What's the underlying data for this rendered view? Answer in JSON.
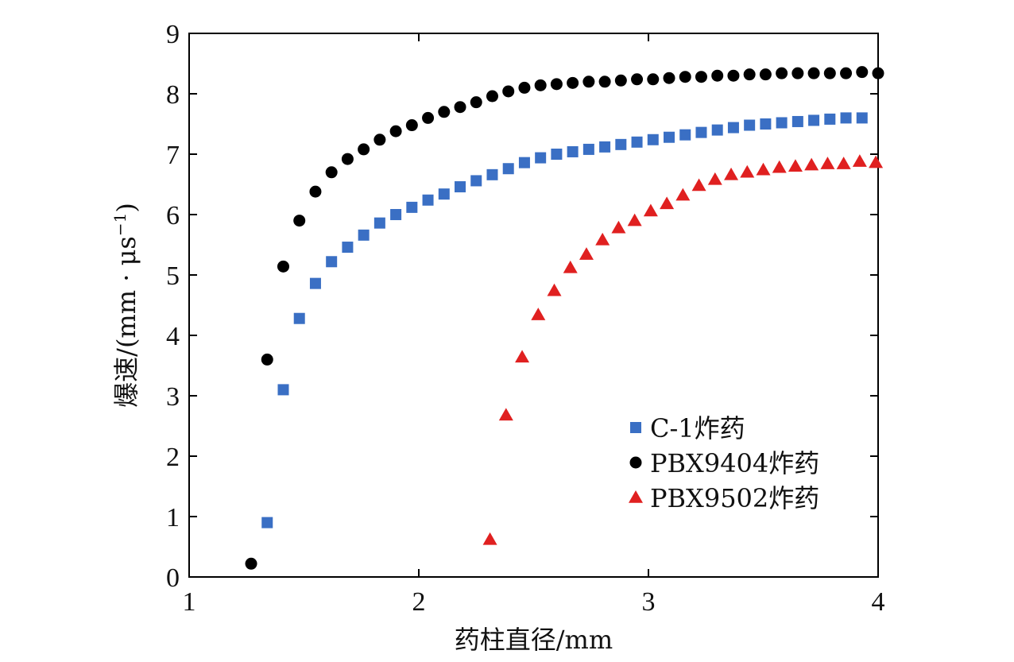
{
  "chart_data": {
    "type": "scatter",
    "xlabel": "药柱直径/mm",
    "ylabel": "爆速/(mm·μs⁻¹)",
    "ylabel_parts": {
      "main": "爆速/(mm · μs",
      "sup": "−1",
      "close": ")"
    },
    "xlim": [
      1,
      4
    ],
    "ylim": [
      0,
      9
    ],
    "x_ticks": [
      "1",
      "2",
      "3",
      "4"
    ],
    "y_ticks": [
      "0",
      "1",
      "2",
      "3",
      "4",
      "5",
      "6",
      "7",
      "8",
      "9"
    ],
    "grid": false,
    "legend_position": "bottom-right",
    "series": [
      {
        "name": "C-1炸药",
        "marker": "square",
        "color": "#3a6fc4",
        "x": [
          1.34,
          1.41,
          1.48,
          1.55,
          1.62,
          1.69,
          1.76,
          1.83,
          1.9,
          1.97,
          2.04,
          2.11,
          2.18,
          2.25,
          2.32,
          2.39,
          2.46,
          2.53,
          2.6,
          2.67,
          2.74,
          2.81,
          2.88,
          2.95,
          3.02,
          3.09,
          3.16,
          3.23,
          3.3,
          3.37,
          3.44,
          3.51,
          3.58,
          3.65,
          3.72,
          3.79,
          3.86,
          3.93
        ],
        "y": [
          0.9,
          3.1,
          4.28,
          4.86,
          5.22,
          5.46,
          5.66,
          5.86,
          6.0,
          6.12,
          6.24,
          6.34,
          6.46,
          6.56,
          6.66,
          6.76,
          6.86,
          6.94,
          7.0,
          7.04,
          7.08,
          7.12,
          7.16,
          7.2,
          7.24,
          7.28,
          7.32,
          7.36,
          7.4,
          7.44,
          7.48,
          7.5,
          7.52,
          7.54,
          7.56,
          7.58,
          7.6,
          7.6
        ]
      },
      {
        "name": "PBX9404炸药",
        "marker": "circle",
        "color": "#000000",
        "x": [
          1.27,
          1.34,
          1.41,
          1.48,
          1.55,
          1.62,
          1.69,
          1.76,
          1.83,
          1.9,
          1.97,
          2.04,
          2.11,
          2.18,
          2.25,
          2.32,
          2.39,
          2.46,
          2.53,
          2.6,
          2.67,
          2.74,
          2.81,
          2.88,
          2.95,
          3.02,
          3.09,
          3.16,
          3.23,
          3.3,
          3.37,
          3.44,
          3.51,
          3.58,
          3.65,
          3.72,
          3.79,
          3.86,
          3.93,
          4.0
        ],
        "y": [
          0.22,
          3.6,
          5.14,
          5.9,
          6.38,
          6.7,
          6.92,
          7.08,
          7.24,
          7.38,
          7.48,
          7.6,
          7.7,
          7.78,
          7.86,
          7.96,
          8.04,
          8.1,
          8.14,
          8.16,
          8.18,
          8.2,
          8.2,
          8.22,
          8.24,
          8.24,
          8.26,
          8.28,
          8.28,
          8.3,
          8.3,
          8.32,
          8.32,
          8.34,
          8.34,
          8.34,
          8.34,
          8.34,
          8.36,
          8.34
        ]
      },
      {
        "name": "PBX9502炸药",
        "marker": "triangle",
        "color": "#e02020",
        "x": [
          2.31,
          2.38,
          2.45,
          2.52,
          2.59,
          2.66,
          2.73,
          2.8,
          2.87,
          2.94,
          3.01,
          3.08,
          3.15,
          3.22,
          3.29,
          3.36,
          3.43,
          3.5,
          3.57,
          3.64,
          3.71,
          3.78,
          3.85,
          3.92,
          3.99
        ],
        "y": [
          0.62,
          2.68,
          3.64,
          4.34,
          4.74,
          5.12,
          5.34,
          5.58,
          5.78,
          5.9,
          6.06,
          6.18,
          6.32,
          6.48,
          6.58,
          6.66,
          6.7,
          6.74,
          6.78,
          6.8,
          6.82,
          6.84,
          6.84,
          6.88,
          6.86
        ]
      }
    ]
  }
}
